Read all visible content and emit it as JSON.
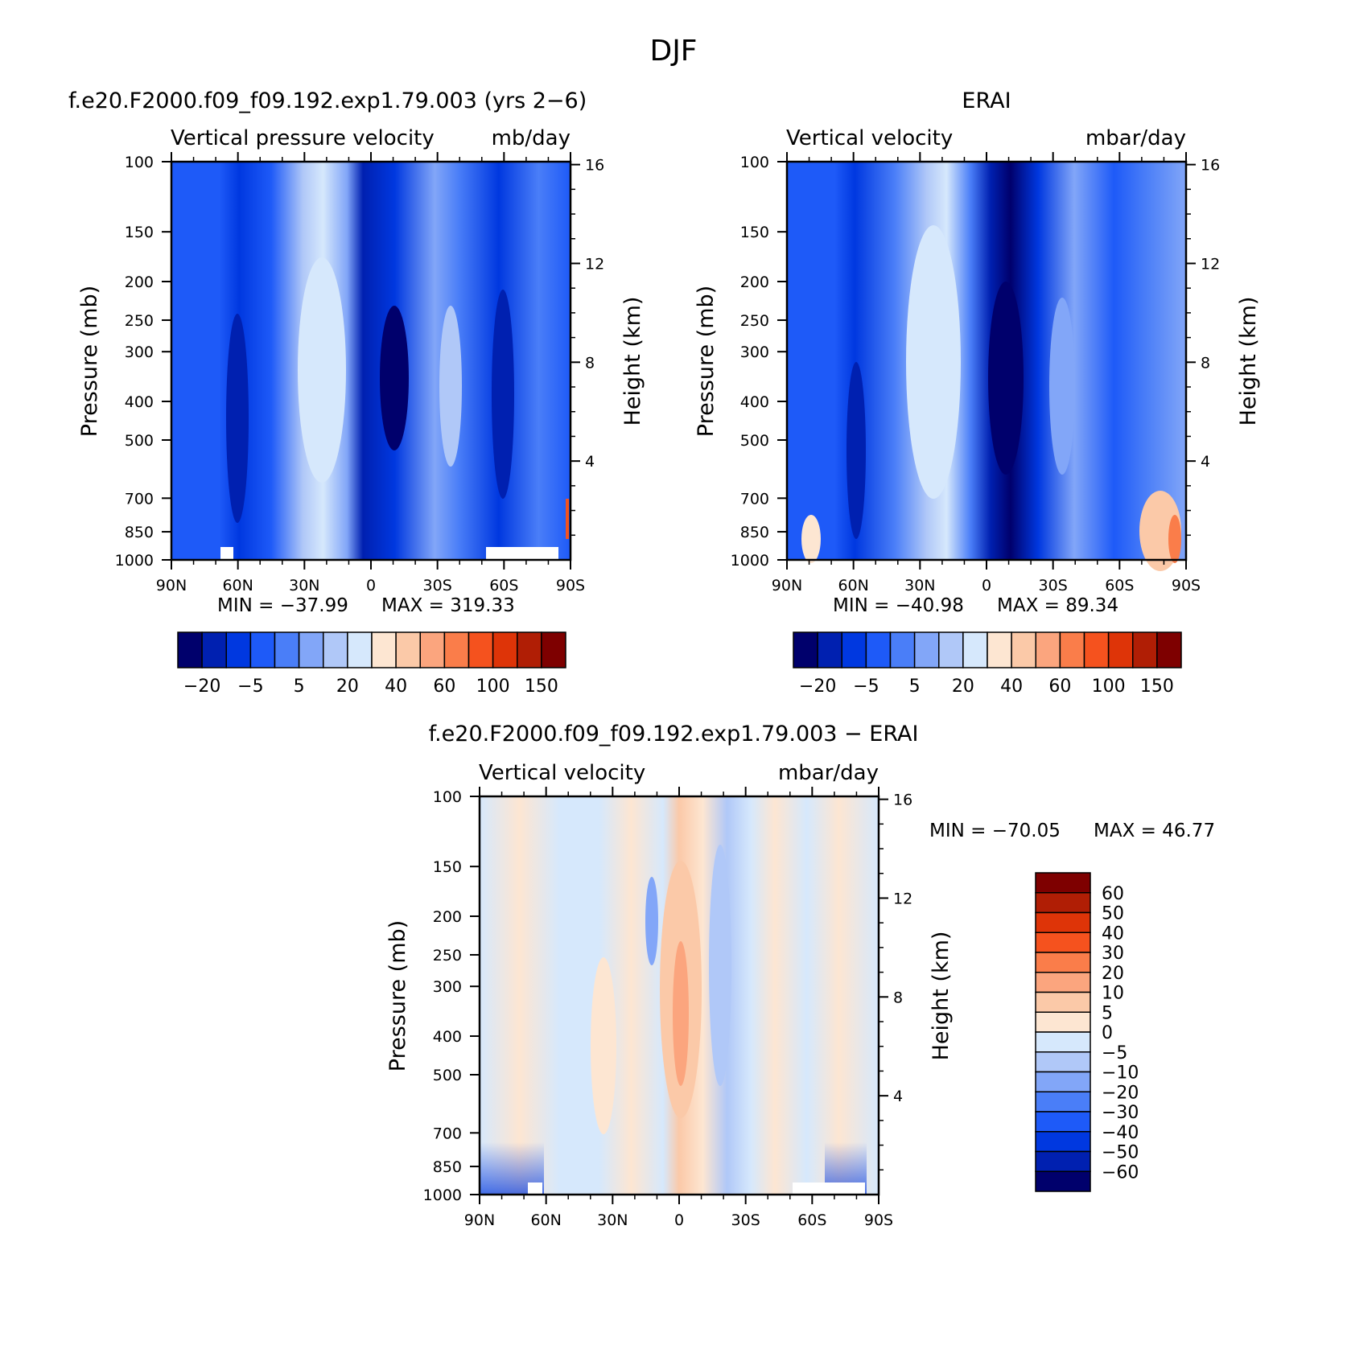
{
  "figure": {
    "title": "DJF",
    "colors": {
      "blue_palette": [
        "#00006c",
        "#0020b0",
        "#0038e0",
        "#1e5af8",
        "#4a7ef8",
        "#82a6f8",
        "#b0c8f8",
        "#d6e8fc"
      ],
      "red_palette": [
        "#fde6d2",
        "#fbc9a8",
        "#fba57e",
        "#fa7d4a",
        "#f5521e",
        "#de3408",
        "#b01e05",
        "#7e0000"
      ],
      "missing": "#ffffff"
    }
  },
  "chart_data": [
    {
      "type": "heatmap",
      "panel": "model",
      "title": "f.e20.F2000.f09_f09.192.exp1.79.003 (yrs 2−6)",
      "header_left": "Vertical pressure velocity",
      "header_right": "mb/day",
      "xlabel": "",
      "ylabel": "Pressure (mb)",
      "ylabel_right": "Height (km)",
      "x_ticks": [
        "90N",
        "60N",
        "30N",
        "0",
        "30S",
        "60S",
        "90S"
      ],
      "x_values": [
        90,
        60,
        30,
        0,
        -30,
        -60,
        -90
      ],
      "y_ticks": [
        100,
        150,
        200,
        250,
        300,
        400,
        500,
        700,
        850,
        1000
      ],
      "y_right_ticks": [
        4,
        8,
        12,
        16
      ],
      "y_scale": "log",
      "ylim": [
        1000,
        100
      ],
      "min_label": "MIN = −37.99",
      "max_label": "MAX = 319.33",
      "contour_levels": [
        "−20",
        "−5",
        "5",
        "20",
        "40",
        "60",
        "100",
        "150"
      ],
      "colorbar_orientation": "horizontal"
    },
    {
      "type": "heatmap",
      "panel": "reanalysis",
      "title": "ERAI",
      "header_left": "Vertical velocity",
      "header_right": "mbar/day",
      "xlabel": "",
      "ylabel": "Pressure (mb)",
      "ylabel_right": "Height (km)",
      "x_ticks": [
        "90N",
        "60N",
        "30N",
        "0",
        "30S",
        "60S",
        "90S"
      ],
      "x_values": [
        90,
        60,
        30,
        0,
        -30,
        -60,
        -90
      ],
      "y_ticks": [
        100,
        150,
        200,
        250,
        300,
        400,
        500,
        700,
        850,
        1000
      ],
      "y_right_ticks": [
        4,
        8,
        12,
        16
      ],
      "y_scale": "log",
      "ylim": [
        1000,
        100
      ],
      "min_label": "MIN = −40.98",
      "max_label": "MAX = 89.34",
      "contour_levels": [
        "−20",
        "−5",
        "5",
        "20",
        "40",
        "60",
        "100",
        "150"
      ],
      "colorbar_orientation": "horizontal"
    },
    {
      "type": "heatmap",
      "panel": "difference",
      "title": "f.e20.F2000.f09_f09.192.exp1.79.003 − ERAI",
      "header_left": "Vertical velocity",
      "header_right": "mbar/day",
      "xlabel": "",
      "ylabel": "Pressure (mb)",
      "ylabel_right": "Height (km)",
      "x_ticks": [
        "90N",
        "60N",
        "30N",
        "0",
        "30S",
        "60S",
        "90S"
      ],
      "x_values": [
        90,
        60,
        30,
        0,
        -30,
        -60,
        -90
      ],
      "y_ticks": [
        100,
        150,
        200,
        250,
        300,
        400,
        500,
        700,
        850,
        1000
      ],
      "y_right_ticks": [
        4,
        8,
        12,
        16
      ],
      "y_scale": "log",
      "ylim": [
        1000,
        100
      ],
      "min_label": "MIN = −70.05",
      "max_label": "MAX = 46.77",
      "contour_levels": [
        "60",
        "50",
        "40",
        "30",
        "20",
        "10",
        "5",
        "0",
        "−5",
        "−10",
        "−20",
        "−30",
        "−40",
        "−50",
        "−60"
      ],
      "colorbar_orientation": "vertical"
    }
  ]
}
